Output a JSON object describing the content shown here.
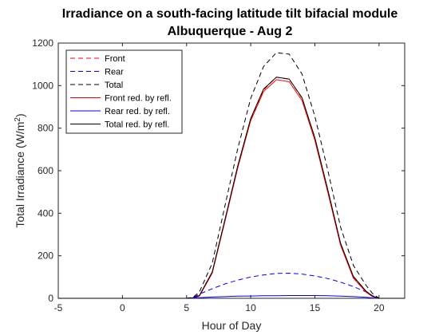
{
  "chart_data": {
    "type": "line",
    "title_line1": "Irradiance on a south-facing latitude tilt bifacial module",
    "title_line2": "Albuquerque - Aug 2",
    "xlabel": "Hour of Day",
    "ylabel_main": "Total Irradiance (W/m",
    "ylabel_sup": "2",
    "ylabel_close": ")",
    "xlim": [
      -5,
      22
    ],
    "ylim": [
      0,
      1200
    ],
    "xticks": [
      "-5",
      "0",
      "5",
      "10",
      "15",
      "20"
    ],
    "yticks": [
      "0",
      "200",
      "400",
      "600",
      "800",
      "1000",
      "1200"
    ],
    "legend_position": "top-left",
    "series": [
      {
        "name": "Front",
        "color": "#ff0000",
        "dash": "dashed",
        "x": [
          -5,
          5,
          5.5,
          6,
          7,
          8,
          9,
          10,
          11,
          12,
          13,
          14,
          15,
          16,
          17,
          18,
          19,
          19.5,
          20,
          22
        ],
        "y": [
          0,
          0,
          2,
          10,
          120,
          370,
          620,
          840,
          980,
          1040,
          1030,
          940,
          750,
          510,
          260,
          100,
          30,
          10,
          0,
          0
        ]
      },
      {
        "name": "Rear",
        "color": "#0000ff",
        "dash": "dashed",
        "x": [
          -5,
          5,
          5.5,
          6,
          7,
          8,
          9,
          10,
          11,
          12,
          13,
          14,
          15,
          16,
          17,
          18,
          19,
          19.5,
          20,
          22
        ],
        "y": [
          0,
          0,
          3,
          20,
          45,
          68,
          86,
          100,
          110,
          117,
          118,
          114,
          105,
          93,
          76,
          55,
          30,
          12,
          0,
          0
        ]
      },
      {
        "name": "Total",
        "color": "#000000",
        "dash": "dashed",
        "x": [
          -5,
          5,
          5.5,
          6,
          7,
          8,
          9,
          10,
          11,
          12,
          13,
          14,
          15,
          16,
          17,
          18,
          19,
          19.5,
          20,
          22
        ],
        "y": [
          0,
          0,
          5,
          30,
          165,
          438,
          706,
          940,
          1090,
          1155,
          1148,
          1054,
          855,
          603,
          336,
          155,
          60,
          22,
          0,
          0
        ]
      },
      {
        "name": "Front red. by refl.",
        "color": "#ff0000",
        "dash": "solid",
        "x": [
          -5,
          5,
          5.5,
          6,
          7,
          8,
          9,
          10,
          11,
          12,
          13,
          14,
          15,
          16,
          17,
          18,
          19,
          19.5,
          20,
          22
        ],
        "y": [
          0,
          0,
          2,
          10,
          118,
          365,
          615,
          835,
          972,
          1028,
          1018,
          930,
          742,
          500,
          250,
          95,
          28,
          8,
          0,
          0
        ]
      },
      {
        "name": "Rear red. by refl.",
        "color": "#0000ff",
        "dash": "solid",
        "x": [
          -5,
          5,
          5.5,
          6,
          7,
          8,
          9,
          10,
          11,
          12,
          13,
          14,
          15,
          16,
          17,
          18,
          19,
          19.5,
          20,
          22
        ],
        "y": [
          0,
          0,
          1,
          3,
          6,
          8,
          10,
          11,
          12,
          12,
          13,
          13,
          13,
          12,
          10,
          8,
          5,
          2,
          0,
          0
        ]
      },
      {
        "name": "Total red. by refl.",
        "color": "#000000",
        "dash": "solid",
        "x": [
          -5,
          5,
          5.5,
          6,
          7,
          8,
          9,
          10,
          11,
          12,
          13,
          14,
          15,
          16,
          17,
          18,
          19,
          19.5,
          20,
          22
        ],
        "y": [
          0,
          0,
          3,
          13,
          124,
          373,
          625,
          846,
          984,
          1040,
          1031,
          943,
          755,
          512,
          260,
          103,
          33,
          10,
          0,
          0
        ]
      }
    ]
  }
}
